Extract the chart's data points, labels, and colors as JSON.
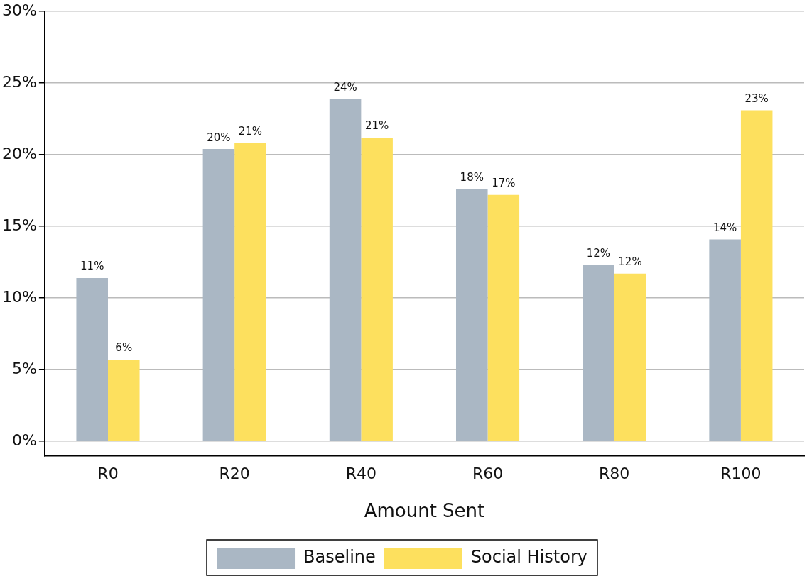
{
  "chart_data": {
    "type": "bar",
    "xlabel": "Amount Sent",
    "categories": [
      "R0",
      "R20",
      "R40",
      "R60",
      "R80",
      "R100"
    ],
    "series": [
      {
        "name": "Baseline",
        "color": "#aab7c4",
        "values": [
          11.4,
          20.4,
          23.9,
          17.6,
          12.3,
          14.1
        ],
        "value_labels": [
          "11%",
          "20%",
          "24%",
          "18%",
          "12%",
          "14%"
        ]
      },
      {
        "name": "Social History",
        "color": "#fde05e",
        "values": [
          5.7,
          20.8,
          21.2,
          17.2,
          11.7,
          23.1
        ],
        "value_labels": [
          "6%",
          "21%",
          "21%",
          "17%",
          "12%",
          "23%"
        ]
      }
    ],
    "ylim": [
      -1,
      30
    ],
    "yticks": [
      {
        "value": 0,
        "label": "0%"
      },
      {
        "value": 5,
        "label": "5%"
      },
      {
        "value": 10,
        "label": "10%"
      },
      {
        "value": 15,
        "label": "15%"
      },
      {
        "value": 20,
        "label": "20%"
      },
      {
        "value": 25,
        "label": "25%"
      },
      {
        "value": 30,
        "label": "30%"
      }
    ],
    "grid": "y",
    "legend": "bottom"
  }
}
